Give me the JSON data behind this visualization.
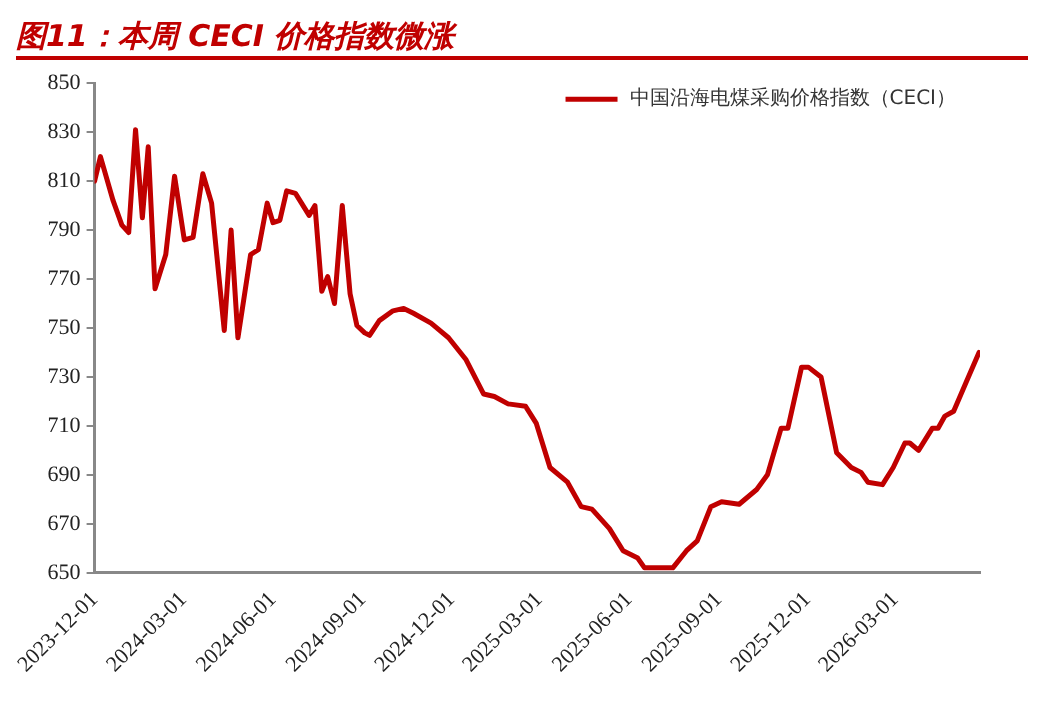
{
  "chart_data": {
    "type": "line",
    "title": "图11：本周 CECI 价格指数微涨",
    "x": [
      "2023-12-01",
      "2023-12-07",
      "2023-12-20",
      "2023-12-29",
      "2024-01-05",
      "2024-01-12",
      "2024-01-19",
      "2024-01-25",
      "2024-02-01",
      "2024-02-12",
      "2024-02-21",
      "2024-03-02",
      "2024-03-11",
      "2024-03-21",
      "2024-03-30",
      "2024-04-12",
      "2024-04-19",
      "2024-04-26",
      "2024-05-09",
      "2024-05-17",
      "2024-05-26",
      "2024-06-01",
      "2024-06-08",
      "2024-06-15",
      "2024-06-24",
      "2024-07-08",
      "2024-07-14",
      "2024-07-21",
      "2024-07-27",
      "2024-08-03",
      "2024-08-11",
      "2024-08-19",
      "2024-08-26",
      "2024-09-03",
      "2024-09-08",
      "2024-09-18",
      "2024-10-02",
      "2024-10-13",
      "2024-10-23",
      "2024-11-10",
      "2024-11-28",
      "2024-12-16",
      "2025-01-03",
      "2025-01-14",
      "2025-01-28",
      "2025-02-15",
      "2025-02-26",
      "2025-03-12",
      "2025-03-30",
      "2025-04-13",
      "2025-04-24",
      "2025-05-12",
      "2025-05-26",
      "2025-06-10",
      "2025-06-17",
      "2025-07-16",
      "2025-07-30",
      "2025-08-10",
      "2025-08-24",
      "2025-09-04",
      "2025-09-22",
      "2025-10-10",
      "2025-10-21",
      "2025-11-04",
      "2025-11-11",
      "2025-11-25",
      "2025-12-02",
      "2025-12-15",
      "2025-12-31",
      "2026-01-15",
      "2026-01-25",
      "2026-02-01",
      "2026-02-16",
      "2026-02-27",
      "2026-03-11",
      "2026-03-16",
      "2026-03-25",
      "2026-04-08",
      "2026-04-14",
      "2026-04-21",
      "2026-04-30",
      "2026-05-13",
      "2026-05-26"
    ],
    "series": [
      {
        "name": "中国沿海电煤采购价格指数（CECI）",
        "color": "#c00000",
        "values": [
          810,
          820,
          802,
          792,
          789,
          831,
          795,
          824,
          766,
          780,
          812,
          786,
          787,
          813,
          801,
          749,
          790,
          746,
          780,
          782,
          801,
          793,
          794,
          806,
          805,
          796,
          800,
          765,
          771,
          760,
          800,
          764,
          751,
          748,
          747,
          753,
          757,
          758,
          756,
          752,
          746,
          737,
          723,
          722,
          719,
          718,
          711,
          693,
          687,
          677,
          676,
          668,
          659,
          656,
          652,
          652,
          659,
          663,
          677,
          679,
          678,
          684,
          690,
          709,
          709,
          734,
          734,
          730,
          699,
          693,
          691,
          687,
          686,
          693,
          703,
          703,
          700,
          709,
          709,
          714,
          716,
          728,
          740
        ]
      }
    ],
    "xlim": [
      "2023-12-01",
      "2026-05-27"
    ],
    "xticks": [
      {
        "value": "2023-12-01",
        "label": "2023-12-01"
      },
      {
        "value": "2024-03-01",
        "label": "2024-03-01"
      },
      {
        "value": "2024-06-01",
        "label": "2024-06-01"
      },
      {
        "value": "2024-09-01",
        "label": "2024-09-01"
      },
      {
        "value": "2024-12-01",
        "label": "2024-12-01"
      },
      {
        "value": "2025-03-01",
        "label": "2025-03-01"
      },
      {
        "value": "2025-06-01",
        "label": "2025-06-01"
      },
      {
        "value": "2025-09-01",
        "label": "2025-09-01"
      },
      {
        "value": "2025-12-01",
        "label": "2025-12-01"
      },
      {
        "value": "2026-03-01",
        "label": "2026-03-01"
      }
    ],
    "ylim": [
      650,
      850
    ],
    "yticks": [
      650,
      670,
      690,
      710,
      730,
      750,
      770,
      790,
      810,
      830,
      850
    ],
    "grid": false,
    "legend": "top right",
    "marker": "none",
    "line_style": "solid"
  }
}
